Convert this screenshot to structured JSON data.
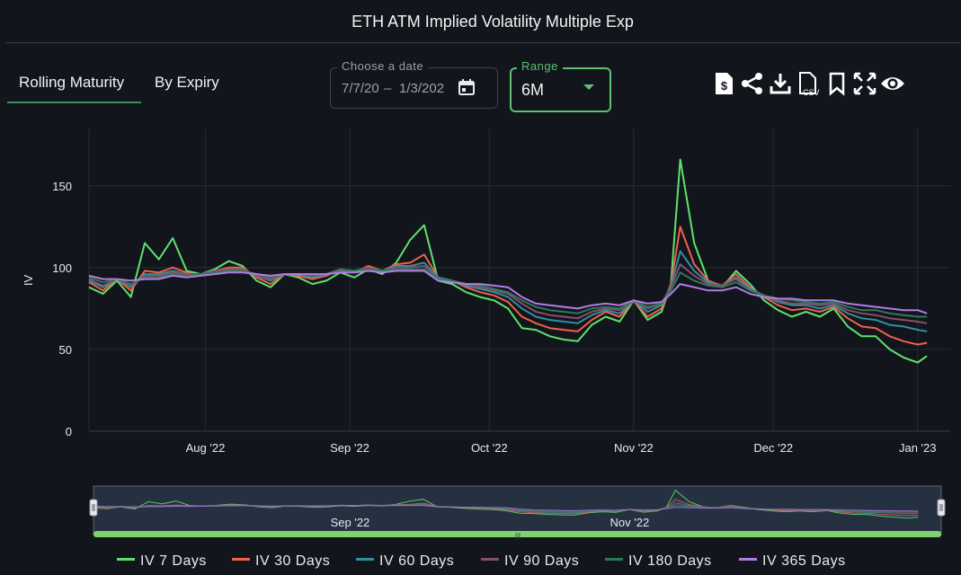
{
  "title": "ETH ATM Implied Volatility Multiple Exp",
  "tabs": [
    {
      "label": "Rolling Maturity",
      "active": true
    },
    {
      "label": "By Expiry",
      "active": false
    }
  ],
  "date_picker": {
    "legend": "Choose a date",
    "start": "7/7/20",
    "separator": "–",
    "end": "1/3/202",
    "icon": "calendar-icon"
  },
  "range": {
    "legend": "Range",
    "value": "6M",
    "accent": "#5fbf72"
  },
  "toolbar": [
    {
      "name": "pricing-doc-icon"
    },
    {
      "name": "share-icon"
    },
    {
      "name": "download-icon"
    },
    {
      "name": "csv-file-icon",
      "label": "CSV"
    },
    {
      "name": "bookmark-icon"
    },
    {
      "name": "fullscreen-icon"
    },
    {
      "name": "eye-icon"
    }
  ],
  "chart_data": {
    "type": "line",
    "title": "ETH ATM Implied Volatility Multiple Exp",
    "ylabel": "IV",
    "ylim": [
      0,
      185
    ],
    "yticks": [
      0,
      50,
      100,
      150
    ],
    "xlim": [
      "2022-07-07",
      "2023-01-08"
    ],
    "xticks": [
      {
        "date": "2022-08-01",
        "label": "Aug '22"
      },
      {
        "date": "2022-09-01",
        "label": "Sep '22"
      },
      {
        "date": "2022-10-01",
        "label": "Oct '22"
      },
      {
        "date": "2022-11-01",
        "label": "Nov '22"
      },
      {
        "date": "2022-12-01",
        "label": "Dec '22"
      },
      {
        "date": "2023-01-01",
        "label": "Jan '23"
      }
    ],
    "grid": true,
    "legend_position": "bottom",
    "x": [
      "2022-07-07",
      "2022-07-10",
      "2022-07-13",
      "2022-07-16",
      "2022-07-19",
      "2022-07-22",
      "2022-07-25",
      "2022-07-28",
      "2022-07-31",
      "2022-08-03",
      "2022-08-06",
      "2022-08-09",
      "2022-08-12",
      "2022-08-15",
      "2022-08-18",
      "2022-08-21",
      "2022-08-24",
      "2022-08-27",
      "2022-08-30",
      "2022-09-02",
      "2022-09-05",
      "2022-09-08",
      "2022-09-11",
      "2022-09-14",
      "2022-09-17",
      "2022-09-20",
      "2022-09-23",
      "2022-09-26",
      "2022-09-29",
      "2022-10-02",
      "2022-10-05",
      "2022-10-08",
      "2022-10-11",
      "2022-10-14",
      "2022-10-17",
      "2022-10-20",
      "2022-10-23",
      "2022-10-26",
      "2022-10-29",
      "2022-11-01",
      "2022-11-04",
      "2022-11-07",
      "2022-11-09",
      "2022-11-11",
      "2022-11-14",
      "2022-11-17",
      "2022-11-20",
      "2022-11-23",
      "2022-11-26",
      "2022-11-29",
      "2022-12-02",
      "2022-12-05",
      "2022-12-08",
      "2022-12-11",
      "2022-12-14",
      "2022-12-17",
      "2022-12-20",
      "2022-12-23",
      "2022-12-26",
      "2022-12-29",
      "2023-01-01",
      "2023-01-03"
    ],
    "series": [
      {
        "name": "IV 7 Days",
        "color": "#5fe06e",
        "values": [
          88,
          84,
          92,
          82,
          115,
          105,
          118,
          98,
          96,
          99,
          104,
          101,
          92,
          88,
          96,
          94,
          90,
          92,
          97,
          94,
          99,
          96,
          103,
          117,
          126,
          92,
          90,
          85,
          82,
          80,
          75,
          63,
          62,
          58,
          56,
          55,
          65,
          70,
          67,
          80,
          68,
          73,
          90,
          166,
          115,
          92,
          88,
          98,
          90,
          80,
          74,
          70,
          73,
          70,
          75,
          64,
          58,
          58,
          50,
          45,
          42,
          46
        ]
      },
      {
        "name": "IV 30 Days",
        "color": "#f0604a",
        "values": [
          91,
          86,
          93,
          86,
          98,
          97,
          100,
          97,
          95,
          98,
          100,
          100,
          94,
          90,
          96,
          95,
          93,
          95,
          99,
          97,
          101,
          98,
          102,
          103,
          108,
          94,
          92,
          88,
          85,
          83,
          79,
          70,
          66,
          63,
          62,
          61,
          68,
          73,
          70,
          80,
          70,
          75,
          90,
          125,
          102,
          92,
          89,
          96,
          88,
          82,
          77,
          74,
          75,
          73,
          76,
          69,
          64,
          63,
          58,
          55,
          53,
          54
        ]
      },
      {
        "name": "IV 60 Days",
        "color": "#2f8fa3",
        "values": [
          92,
          88,
          93,
          88,
          96,
          96,
          98,
          96,
          96,
          98,
          99,
          99,
          95,
          92,
          96,
          96,
          94,
          96,
          99,
          98,
          100,
          98,
          101,
          101,
          103,
          94,
          92,
          89,
          87,
          85,
          82,
          75,
          70,
          68,
          67,
          66,
          71,
          74,
          72,
          80,
          73,
          77,
          89,
          110,
          98,
          91,
          89,
          94,
          87,
          83,
          79,
          77,
          77,
          75,
          77,
          72,
          69,
          68,
          65,
          64,
          62,
          61
        ]
      },
      {
        "name": "IV 90 Days",
        "color": "#8a4e6b",
        "values": [
          93,
          89,
          93,
          89,
          95,
          95,
          97,
          96,
          96,
          98,
          99,
          99,
          95,
          93,
          96,
          96,
          95,
          96,
          99,
          98,
          100,
          98,
          100,
          100,
          101,
          93,
          92,
          90,
          88,
          86,
          84,
          78,
          73,
          71,
          70,
          69,
          73,
          75,
          74,
          80,
          75,
          78,
          88,
          102,
          95,
          90,
          89,
          93,
          86,
          83,
          80,
          78,
          78,
          77,
          78,
          74,
          72,
          71,
          69,
          68,
          67,
          66
        ]
      },
      {
        "name": "IV 180 Days",
        "color": "#2a7b57",
        "values": [
          94,
          91,
          93,
          90,
          94,
          94,
          96,
          95,
          96,
          97,
          98,
          98,
          96,
          94,
          96,
          96,
          95,
          96,
          98,
          98,
          99,
          98,
          99,
          99,
          99,
          93,
          92,
          90,
          89,
          87,
          85,
          80,
          76,
          74,
          73,
          72,
          75,
          76,
          75,
          80,
          76,
          78,
          86,
          97,
          92,
          89,
          88,
          91,
          86,
          83,
          81,
          80,
          79,
          78,
          79,
          76,
          74,
          74,
          72,
          71,
          70,
          70
        ]
      },
      {
        "name": "IV 365 Days",
        "color": "#b47ae8",
        "values": [
          95,
          93,
          93,
          92,
          93,
          93,
          95,
          94,
          95,
          96,
          97,
          97,
          96,
          95,
          96,
          96,
          96,
          96,
          97,
          97,
          98,
          97,
          98,
          98,
          98,
          92,
          91,
          90,
          90,
          89,
          88,
          82,
          78,
          77,
          76,
          75,
          77,
          78,
          77,
          80,
          78,
          79,
          84,
          90,
          88,
          86,
          86,
          88,
          84,
          82,
          81,
          81,
          80,
          80,
          80,
          78,
          77,
          76,
          75,
          74,
          74,
          72
        ]
      }
    ]
  },
  "navigator": {
    "labels": [
      {
        "date": "2022-09-01",
        "label": "Sep '22"
      },
      {
        "date": "2022-11-01",
        "label": "Nov '22"
      }
    ]
  }
}
